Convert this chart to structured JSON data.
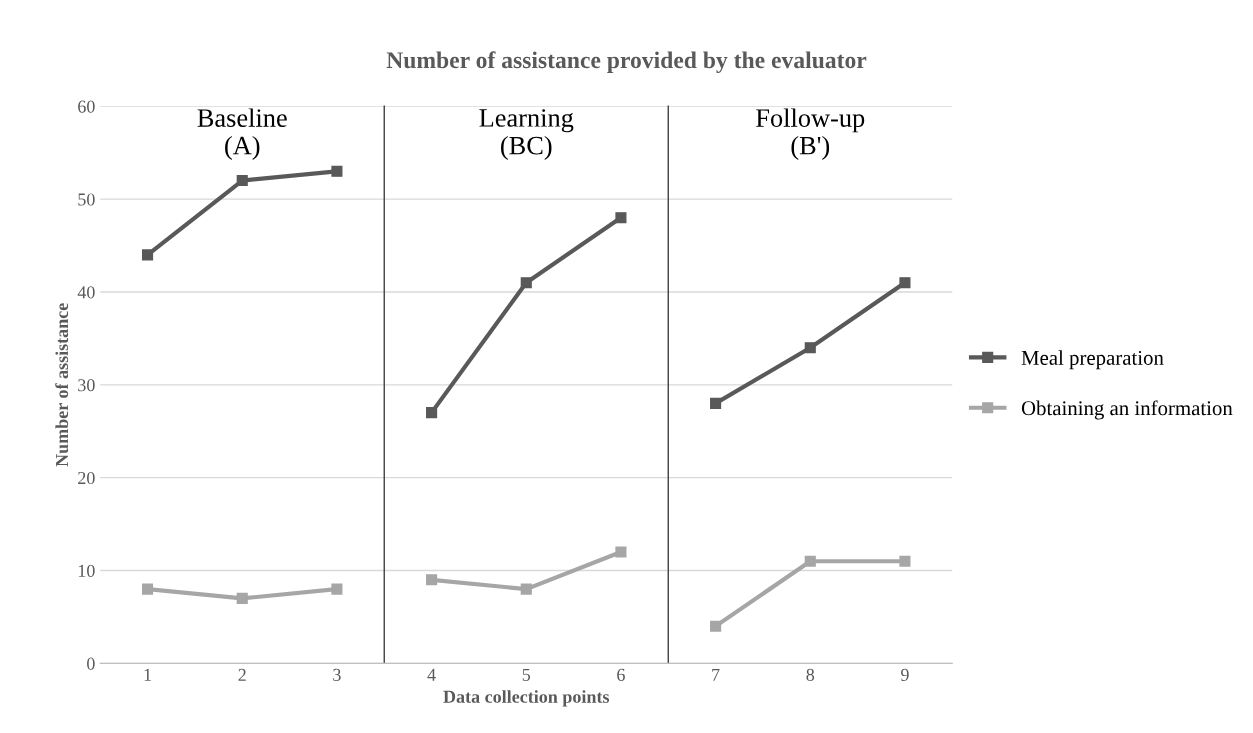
{
  "chart_data": {
    "type": "line",
    "title": "Number of assistance provided by the evaluator",
    "xlabel": "Data collection points",
    "ylabel": "Number of assistance",
    "x": [
      1,
      2,
      3,
      4,
      5,
      6,
      7,
      8,
      9
    ],
    "series": [
      {
        "name": "Meal preparation",
        "color": "#595959",
        "values": [
          44,
          52,
          53,
          27,
          41,
          48,
          28,
          34,
          41
        ]
      },
      {
        "name": "Obtaining an information",
        "color": "#a6a6a6",
        "values": [
          8,
          7,
          8,
          9,
          8,
          12,
          4,
          11,
          11
        ]
      }
    ],
    "xlim": [
      0.5,
      9.5
    ],
    "xticks": [
      1,
      2,
      3,
      4,
      5,
      6,
      7,
      8,
      9
    ],
    "ylim": [
      0,
      60
    ],
    "yticks": [
      0,
      10,
      20,
      30,
      40,
      50,
      60
    ],
    "ref_lines": [
      {
        "axis": "x",
        "value": 3.5,
        "color": "#404040"
      },
      {
        "axis": "x",
        "value": 6.5,
        "color": "#404040"
      }
    ],
    "annotations": [
      "Baseline\n(A)",
      "Learning\n(BC)",
      "Follow-up\n(B')"
    ],
    "grid": "y",
    "legend": "right",
    "marker": "square",
    "line_style": "solid"
  }
}
